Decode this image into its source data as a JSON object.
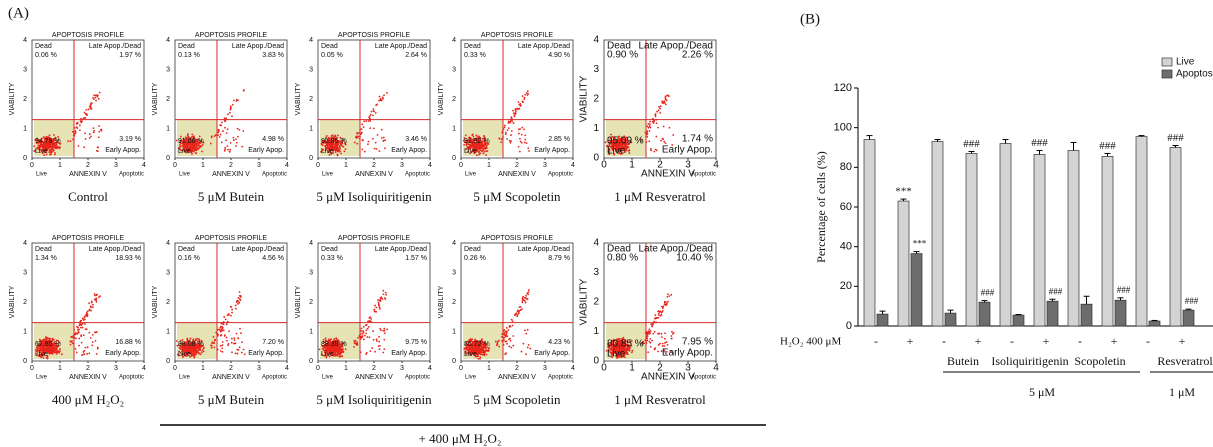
{
  "panel_a": {
    "label": "(A)",
    "title": "APOPTOSIS PROFILE",
    "y_label": "VIABILITY",
    "x_label": "ANNEXIN V",
    "axis_ticks": [
      0,
      1,
      2,
      3,
      4
    ],
    "axis_ends": {
      "left": "Live",
      "right": "Apoptotic"
    },
    "quadrant_labels": {
      "dead": "Dead",
      "late": "Late Apop./Dead",
      "live": "Live",
      "early": "Early Apop."
    },
    "shared_caption": "+ 400 μM H₂O₂",
    "panels": [
      {
        "caption": "Control",
        "dead": "0.06 %",
        "late": "1.97 %",
        "live": "94.78 %",
        "early": "3.19 %",
        "titled": true
      },
      {
        "caption": "5 μM  Butein",
        "dead": "0.13 %",
        "late": "3.83 %",
        "live": "91.06 %",
        "early": "4.98 %",
        "titled": true
      },
      {
        "caption": "5 μM  Isoliquiritigenin",
        "dead": "0.05 %",
        "late": "2.64 %",
        "live": "95.85 %",
        "early": "3.46 %",
        "titled": true
      },
      {
        "caption": "5 μM  Scopoletin",
        "dead": "0.33 %",
        "late": "4.90 %",
        "live": "91.92 %",
        "early": "2.85 %",
        "titled": true
      },
      {
        "caption": "1 μM Resveratrol",
        "dead": "0.90 %",
        "late": "2.26 %",
        "live": "95.09 %",
        "early": "1.74 %",
        "titled": false
      },
      {
        "caption": "400 μM H₂O₂",
        "dead": "1.34 %",
        "late": "18.93 %",
        "live": "62.85 %",
        "early": "16.88 %",
        "titled": true
      },
      {
        "caption": "5 μM  Butein",
        "dead": "0.16 %",
        "late": "4.56 %",
        "live": "88.08 %",
        "early": "7.20 %",
        "titled": true
      },
      {
        "caption": "5 μM  Isoliquiritigenin",
        "dead": "0.33 %",
        "late": "1.57 %",
        "live": "88.35 %",
        "early": "9.75 %",
        "titled": true
      },
      {
        "caption": "5 μM  Scopoletin",
        "dead": "0.26 %",
        "late": "8.79 %",
        "live": "86.72 %",
        "early": "4.23 %",
        "titled": true
      },
      {
        "caption": "1 μM Resveratrol",
        "dead": "0.80 %",
        "late": "10.40 %",
        "live": "80.85 %",
        "early": "7.95 %",
        "titled": false
      }
    ]
  },
  "chart_data": {
    "type": "bar",
    "panel_label": "(B)",
    "y_label": "Percentage of cells (%)",
    "x_row_label": "H₂O₂ 400 μM",
    "categories": [
      "-",
      "+",
      "-",
      "+",
      "-",
      "+",
      "-",
      "+",
      "-",
      "+"
    ],
    "groups": [
      "Butein",
      "Isoliquiritigenin",
      "Scopoletin",
      "Resveratrol"
    ],
    "concentrations": [
      "5 μM",
      "1 μM"
    ],
    "ylim": [
      0,
      120
    ],
    "yticks": [
      0,
      20,
      40,
      60,
      80,
      100,
      120
    ],
    "legend": "top-right",
    "series": [
      {
        "name": "Live",
        "color": "#d4d4d4",
        "values": [
          94,
          63,
          93,
          87,
          92,
          86.5,
          88.5,
          85.5,
          95.5,
          90
        ],
        "errors": [
          2,
          1,
          1,
          1,
          2,
          2,
          4,
          1.5,
          0.5,
          1
        ],
        "significance": [
          null,
          "***",
          null,
          "###",
          null,
          "###",
          null,
          "###",
          null,
          "###"
        ]
      },
      {
        "name": "Apoptosis",
        "color": "#6d6d6d",
        "values": [
          6,
          36.5,
          6.5,
          12,
          5.5,
          12.5,
          11,
          13,
          2.5,
          8
        ],
        "errors": [
          1.5,
          1,
          1.5,
          0.8,
          0.3,
          1,
          4,
          1.2,
          0.3,
          0.5
        ],
        "significance": [
          null,
          "***",
          null,
          "###",
          null,
          "###",
          null,
          "###",
          null,
          "###"
        ]
      }
    ]
  }
}
